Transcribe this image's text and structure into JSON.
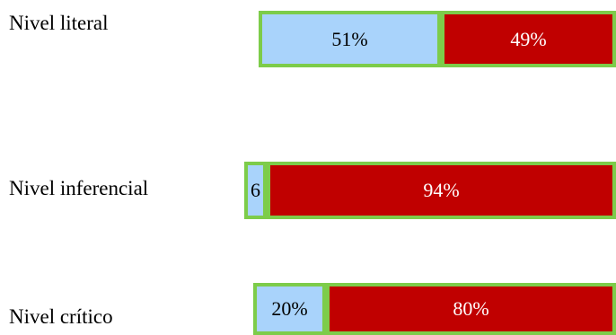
{
  "colors": {
    "accuracy": "#a9d3fb",
    "error": "#c00000",
    "border": "#7dcc4a"
  },
  "chart_data": {
    "type": "bar",
    "orientation": "horizontal",
    "stacked": true,
    "normalized": true,
    "categories": [
      "Nivel literal",
      "Nivel inferencial",
      "Nivel crítico"
    ],
    "series": [
      {
        "values": [
          51,
          6,
          20
        ],
        "labels": [
          "51%",
          "6",
          "20%"
        ]
      },
      {
        "values": [
          49,
          94,
          80
        ],
        "labels": [
          "49%",
          "94%",
          "80%"
        ]
      }
    ]
  }
}
